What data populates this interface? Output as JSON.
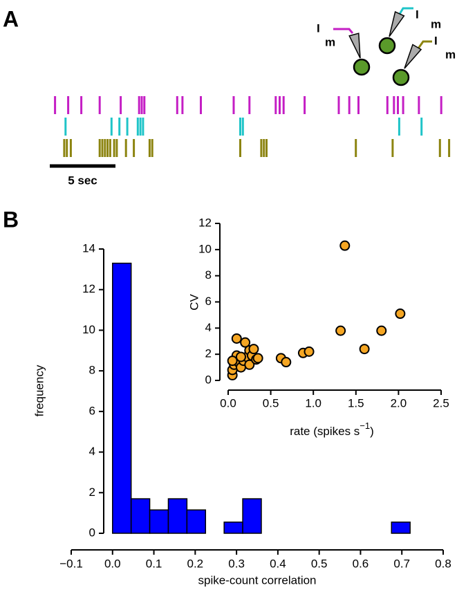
{
  "chart_data": [
    {
      "type": "raster",
      "panel": "A",
      "xlim": [
        0,
        31
      ],
      "scale_bar": {
        "value": 5,
        "label": "5 sec"
      },
      "series": [
        {
          "color": "#c41ec4",
          "probe_label": "I",
          "probe_sub": "m",
          "values": [
            0.4,
            1.4,
            2.4,
            3.8,
            5.4,
            6.8,
            7.0,
            7.2,
            9.7,
            10.1,
            11.5,
            14.0,
            15.2,
            17.2,
            17.5,
            17.8,
            19.4,
            22.0,
            22.8,
            23.5,
            25.7,
            26.2,
            26.5,
            26.9,
            28.1,
            29.8
          ]
        },
        {
          "color": "#1fc4c8",
          "probe_label": "I",
          "probe_sub": "m",
          "values": [
            1.2,
            4.7,
            5.3,
            5.9,
            6.7,
            6.9,
            7.1,
            14.5,
            14.7,
            26.6,
            28.3
          ]
        },
        {
          "color": "#8c8410",
          "probe_label": "I",
          "probe_sub": "m",
          "values": [
            1.1,
            1.3,
            1.6,
            3.8,
            4.0,
            4.2,
            4.4,
            4.6,
            4.9,
            5.1,
            5.8,
            6.4,
            7.6,
            7.8,
            14.5,
            16.1,
            16.3,
            16.5,
            23.3,
            26.1,
            29.7,
            30.4
          ]
        }
      ]
    },
    {
      "type": "histogram",
      "panel": "B",
      "xlabel": "spike-count correlation",
      "ylabel": "frequency",
      "bins": [
        0,
        0.045,
        0.09,
        0.135,
        0.18,
        0.225,
        0.27,
        0.315,
        0.36,
        0.405,
        0.45,
        0.495,
        0.54,
        0.585,
        0.63,
        0.675,
        0.72
      ],
      "values": [
        13.3,
        1.7,
        1.15,
        1.7,
        1.15,
        0,
        0.55,
        1.7,
        0,
        0,
        0,
        0,
        0,
        0,
        0,
        0.55
      ],
      "color": "#0000ff",
      "xlim": [
        -0.1,
        0.8
      ],
      "ylim": [
        0,
        14
      ],
      "xticks": [
        {
          "value": -0.1,
          "label": "−0.1"
        },
        {
          "value": 0,
          "label": "0.0"
        },
        0.1,
        0.2,
        0.3,
        0.4,
        0.5,
        0.6,
        0.7,
        0.8
      ],
      "yticks": [
        0,
        2,
        4,
        6,
        8,
        10,
        12,
        14
      ]
    },
    {
      "type": "scatter",
      "xlabel": "rate (spikes s",
      "xlabel_sup": "−1",
      "xlabel_end": ")",
      "ylabel": "CV",
      "x": [
        0.05,
        0.05,
        0.07,
        0.08,
        0.1,
        0.12,
        0.1,
        0.15,
        0.18,
        0.2,
        0.22,
        0.25,
        0.25,
        0.28,
        0.3,
        0.33,
        0.35,
        0.62,
        0.68,
        0.88,
        0.95,
        1.32,
        1.37,
        1.6,
        1.8,
        2.02,
        0.05,
        0.15
      ],
      "values": [
        0.4,
        0.8,
        1.2,
        1.6,
        1.9,
        1.4,
        3.2,
        1.0,
        1.5,
        2.9,
        1.8,
        2.3,
        1.2,
        1.9,
        2.4,
        1.6,
        1.7,
        1.7,
        1.4,
        2.1,
        2.2,
        3.8,
        10.3,
        2.4,
        3.8,
        5.1,
        1.5,
        1.8
      ],
      "color": "#f5a623",
      "xlim": [
        0,
        2.5
      ],
      "ylim": [
        0,
        12
      ],
      "xticks": [
        {
          "value": 0,
          "label": "0.0"
        },
        0.5,
        {
          "value": 1,
          "label": "1.0"
        },
        1.5,
        {
          "value": 2,
          "label": "2.0"
        },
        2.5
      ],
      "yticks": [
        0,
        2,
        4,
        6,
        8,
        10,
        12
      ]
    }
  ]
}
